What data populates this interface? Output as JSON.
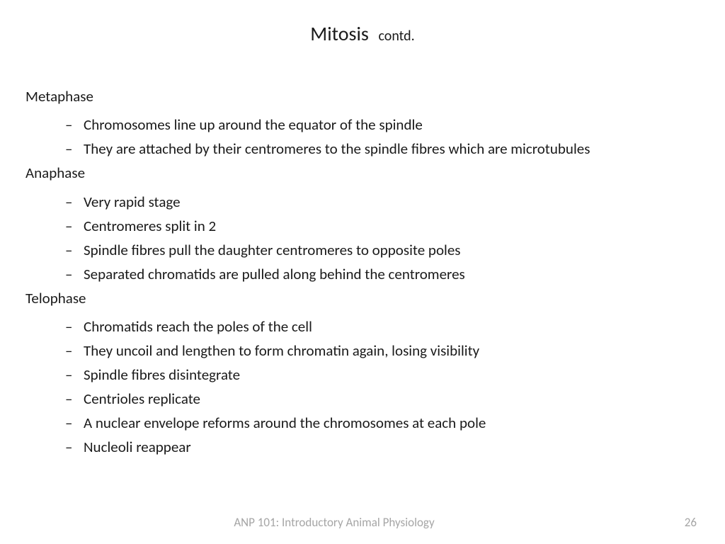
{
  "title": {
    "main": "Mitosis",
    "sub": "contd."
  },
  "sections": [
    {
      "heading": "Metaphase",
      "bullets": [
        "Chromosomes line up around the equator of the spindle",
        "They are attached by their centromeres to the spindle fibres which are microtubules"
      ]
    },
    {
      "heading": "Anaphase",
      "bullets": [
        "Very rapid stage",
        "Centromeres split in 2",
        "Spindle fibres pull the daughter centromeres to opposite poles",
        "Separated chromatids are pulled along behind the centromeres"
      ]
    },
    {
      "heading": "Telophase",
      "bullets": [
        "Chromatids reach the poles of the cell",
        "They uncoil and lengthen to form chromatin again, losing visibility",
        "Spindle fibres disintegrate",
        "Centrioles replicate",
        "A nuclear envelope reforms around the chromosomes at each pole",
        "Nucleoli reappear"
      ]
    }
  ],
  "footer": {
    "course": "ANP 101: Introductory Animal Physiology",
    "page": "26"
  },
  "styling": {
    "background_color": "#ffffff",
    "text_color": "#1a1a1a",
    "footer_color": "#a6a6a6",
    "title_main_fontsize": 28,
    "title_sub_fontsize": 20,
    "heading_fontsize": 21,
    "bullet_fontsize": 21,
    "footer_fontsize": 17,
    "font_family": "Calibri"
  }
}
